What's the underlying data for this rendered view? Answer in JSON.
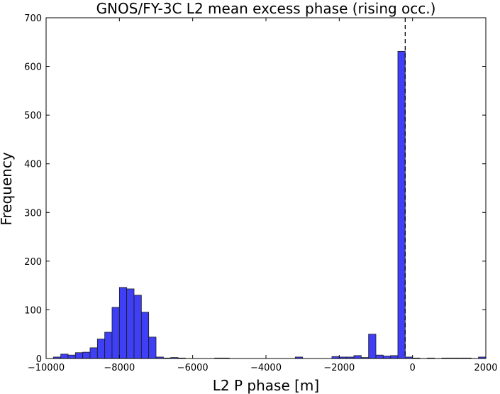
{
  "chart_data": {
    "type": "bar",
    "title": "GNOS/FY-3C L2 mean excess phase (rising occ.)",
    "xlabel": "L2 P phase [m]",
    "ylabel": "Frequency",
    "xlim": [
      -10000,
      2000
    ],
    "ylim": [
      0,
      700
    ],
    "xticks": [
      -10000,
      -8000,
      -6000,
      -4000,
      -2000,
      0,
      2000
    ],
    "xtick_labels": [
      "−10000",
      "−8000",
      "−6000",
      "−4000",
      "−2000",
      "0",
      "2000"
    ],
    "yticks": [
      0,
      100,
      200,
      300,
      400,
      500,
      600,
      700
    ],
    "grid": false,
    "bar_color": "#3f3ff5",
    "bin_width": 200,
    "bins": [
      {
        "x0": -9800,
        "x1": -9600,
        "count": 3
      },
      {
        "x0": -9600,
        "x1": -9400,
        "count": 9
      },
      {
        "x0": -9400,
        "x1": -9200,
        "count": 7
      },
      {
        "x0": -9200,
        "x1": -9000,
        "count": 12
      },
      {
        "x0": -9000,
        "x1": -8800,
        "count": 13
      },
      {
        "x0": -8800,
        "x1": -8600,
        "count": 22
      },
      {
        "x0": -8600,
        "x1": -8400,
        "count": 40
      },
      {
        "x0": -8400,
        "x1": -8200,
        "count": 54
      },
      {
        "x0": -8200,
        "x1": -8000,
        "count": 105
      },
      {
        "x0": -8000,
        "x1": -7800,
        "count": 146
      },
      {
        "x0": -7800,
        "x1": -7600,
        "count": 143
      },
      {
        "x0": -7600,
        "x1": -7400,
        "count": 130
      },
      {
        "x0": -7400,
        "x1": -7200,
        "count": 95
      },
      {
        "x0": -7200,
        "x1": -7000,
        "count": 44
      },
      {
        "x0": -7000,
        "x1": -6800,
        "count": 3
      },
      {
        "x0": -6800,
        "x1": -6600,
        "count": 1
      },
      {
        "x0": -6600,
        "x1": -6400,
        "count": 2
      },
      {
        "x0": -6400,
        "x1": -6200,
        "count": 1
      },
      {
        "x0": -5400,
        "x1": -5200,
        "count": 1
      },
      {
        "x0": -5200,
        "x1": -5000,
        "count": 1
      },
      {
        "x0": -3200,
        "x1": -3000,
        "count": 3
      },
      {
        "x0": -2200,
        "x1": -2000,
        "count": 4
      },
      {
        "x0": -2000,
        "x1": -1800,
        "count": 3
      },
      {
        "x0": -1800,
        "x1": -1600,
        "count": 3
      },
      {
        "x0": -1600,
        "x1": -1400,
        "count": 6
      },
      {
        "x0": -1400,
        "x1": -1200,
        "count": 2
      },
      {
        "x0": -1200,
        "x1": -1000,
        "count": 50
      },
      {
        "x0": -1000,
        "x1": -800,
        "count": 7
      },
      {
        "x0": -800,
        "x1": -600,
        "count": 5
      },
      {
        "x0": -600,
        "x1": -400,
        "count": 6
      },
      {
        "x0": -400,
        "x1": -200,
        "count": 631
      },
      {
        "x0": -200,
        "x1": 0,
        "count": 3
      },
      {
        "x0": 0,
        "x1": 200,
        "count": 1
      },
      {
        "x0": 400,
        "x1": 600,
        "count": 1
      },
      {
        "x0": 800,
        "x1": 1000,
        "count": 1
      },
      {
        "x0": 1000,
        "x1": 1200,
        "count": 1
      },
      {
        "x0": 1200,
        "x1": 1400,
        "count": 1
      },
      {
        "x0": 1400,
        "x1": 1600,
        "count": 1
      },
      {
        "x0": 1800,
        "x1": 2000,
        "count": 3
      }
    ],
    "reference_line": {
      "x": -200,
      "style": "dashed",
      "color": "#000000"
    }
  }
}
